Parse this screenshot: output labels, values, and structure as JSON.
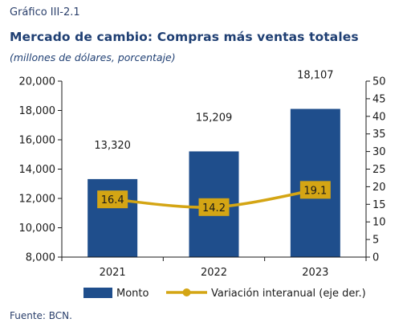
{
  "figure": {
    "label": "Gráfico III-2.1",
    "title": "Mercado de cambio: Compras más ventas totales",
    "subtitle": "(millones de dólares, porcentaje)",
    "source": "Fuente: BCN."
  },
  "chart_data": {
    "type": "bar",
    "categories": [
      "2021",
      "2022",
      "2023"
    ],
    "series": [
      {
        "name": "Monto",
        "type": "bar",
        "axis": "left",
        "values": [
          13320,
          15209,
          18107
        ],
        "labels": [
          "13,320",
          "15,209",
          "18,107"
        ],
        "color": "#1f4e8c"
      },
      {
        "name": "Variación interanual (eje der.)",
        "type": "line",
        "axis": "right",
        "values": [
          16.4,
          14.2,
          19.1
        ],
        "labels": [
          "16.4",
          "14.2",
          "19.1"
        ],
        "color": "#d4a514"
      }
    ],
    "y_left": {
      "ylim": [
        8000,
        20000
      ],
      "ticks": [
        8000,
        10000,
        12000,
        14000,
        16000,
        18000,
        20000
      ],
      "tick_labels": [
        "8,000",
        "10,000",
        "12,000",
        "14,000",
        "16,000",
        "18,000",
        "20,000"
      ]
    },
    "y_right": {
      "ylim": [
        0,
        50
      ],
      "ticks": [
        0,
        5,
        10,
        15,
        20,
        25,
        30,
        35,
        40,
        45,
        50
      ],
      "tick_labels": [
        "0",
        "5",
        "10",
        "15",
        "20",
        "25",
        "30",
        "35",
        "40",
        "45",
        "50"
      ]
    },
    "grid": false,
    "legend_position": "bottom"
  }
}
